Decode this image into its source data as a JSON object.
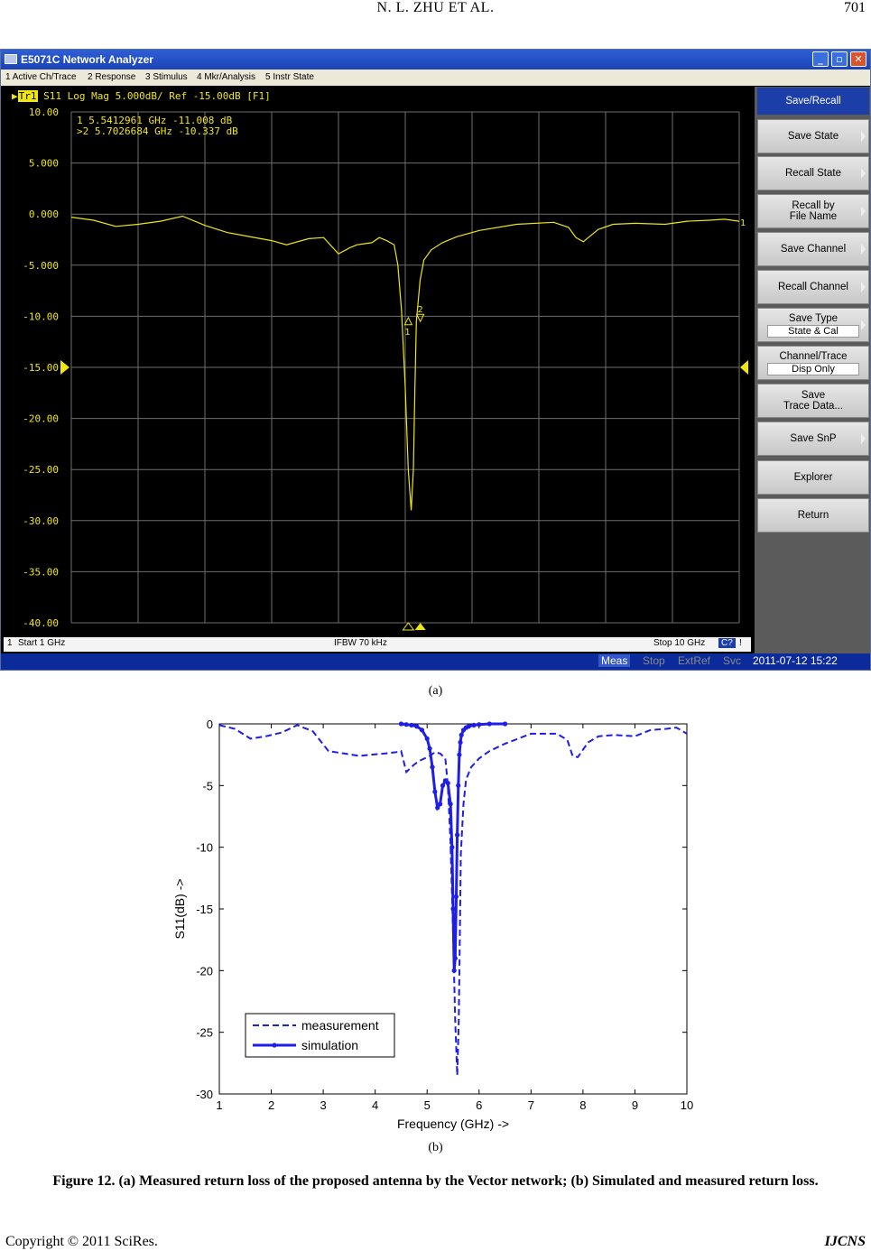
{
  "header": {
    "title": "N. L. ZHU    ET    AL.",
    "page_number": "701"
  },
  "analyzer": {
    "window_title": "E5071C Network Analyzer",
    "window_buttons": [
      "_",
      "▫",
      "✕"
    ],
    "menu": [
      "1 Active Ch/Trace",
      "2 Response",
      "3 Stimulus",
      "4 Mkr/Analysis",
      "5 Instr State"
    ],
    "trace_tag": "Tr1",
    "trace_info": "S11 Log Mag 5.000dB/ Ref -15.00dB [F1]",
    "markers": [
      {
        "label": " 1",
        "freq": "5.5412961 GHz",
        "value": "-11.008 dB"
      },
      {
        "label": ">2",
        "freq": "5.7026684 GHz",
        "value": "-10.337 dB"
      }
    ],
    "y_ticks": [
      "10.00",
      "5.000",
      "0.000",
      "-5.000",
      "-10.00",
      "-15.00",
      "-20.00",
      "-25.00",
      "-30.00",
      "-35.00",
      "-40.00"
    ],
    "ref_level_index": 5,
    "status": {
      "channel": "1",
      "start": "Start 1 GHz",
      "ifbw": "IFBW 70 kHz",
      "stop": "Stop 10 GHz",
      "cal": "C?",
      "excl": "!"
    },
    "bottom": {
      "meas": "Meas",
      "stop": "Stop",
      "extref": "ExtRef",
      "svc": "Svc",
      "datetime": "2011-07-12 15:22"
    },
    "softkeys": [
      {
        "label": "Save/Recall",
        "head": true
      },
      {
        "label": "Save State"
      },
      {
        "label": "Recall State"
      },
      {
        "label": "Recall by",
        "label2": "File Name"
      },
      {
        "label": "Save Channel"
      },
      {
        "label": "Recall Channel"
      },
      {
        "label": "Save Type",
        "sub": "State & Cal"
      },
      {
        "label": "Channel/Trace",
        "sub": "Disp Only"
      },
      {
        "label": "Save",
        "label2": "Trace Data..."
      },
      {
        "label": "Save SnP"
      },
      {
        "label": "Explorer"
      },
      {
        "label": "Return"
      }
    ],
    "marker_flags": [
      "1",
      "2"
    ],
    "right_end_label": "1",
    "colors": {
      "trace": "#f0e60f",
      "grid": "#6e6e6e",
      "background": "#000000",
      "text": "#f0e60f"
    }
  },
  "caption_a": "(a)",
  "caption_b": "(b)",
  "figure_caption": "Figure 12. (a) Measured return loss of the proposed antenna by the Vector network; (b) Simulated and measured return loss.",
  "footer": {
    "left": "Copyright © 2011 SciRes.",
    "right": "IJCNS"
  },
  "chart_data": [
    {
      "type": "line",
      "panel": "a",
      "xlabel": "",
      "ylabel": "",
      "xlim": [
        1,
        10
      ],
      "ylim": [
        -40,
        10
      ],
      "series": [
        {
          "x": [
            1.0,
            1.3,
            1.6,
            1.9,
            2.2,
            2.5,
            2.8,
            3.1,
            3.4,
            3.7,
            3.9,
            4.2,
            4.4,
            4.6,
            4.75,
            4.85,
            4.95,
            5.05,
            5.15,
            5.25,
            5.35,
            5.4,
            5.45,
            5.5,
            5.54,
            5.58,
            5.61,
            5.63,
            5.65,
            5.7,
            5.75,
            5.85,
            6.0,
            6.2,
            6.5,
            7.0,
            7.5,
            7.7,
            7.8,
            7.9,
            8.1,
            8.3,
            8.6,
            9.0,
            9.3,
            9.6,
            9.8,
            10.0
          ],
          "y": [
            -0.3,
            -0.6,
            -1.2,
            -1.0,
            -0.7,
            -0.2,
            -1.1,
            -1.8,
            -2.2,
            -2.6,
            -3.0,
            -2.4,
            -2.3,
            -3.9,
            -3.3,
            -3.0,
            -2.9,
            -2.8,
            -2.3,
            -2.6,
            -3.0,
            -5.0,
            -9.5,
            -17.0,
            -25.0,
            -29.0,
            -25.0,
            -17.0,
            -10.5,
            -6.5,
            -4.5,
            -3.5,
            -2.8,
            -2.2,
            -1.6,
            -1.0,
            -0.8,
            -1.3,
            -2.3,
            -2.7,
            -1.5,
            -1.0,
            -0.9,
            -1.0,
            -0.7,
            -0.6,
            -0.5,
            -0.7
          ]
        }
      ]
    },
    {
      "type": "line",
      "panel": "b",
      "title": "",
      "xlabel": "Frequency (GHz) ->",
      "ylabel": "S11(dB) ->",
      "xlim": [
        1,
        10
      ],
      "ylim": [
        -30,
        0
      ],
      "x_ticks": [
        "1",
        "2",
        "3",
        "4",
        "5",
        "6",
        "7",
        "8",
        "9",
        "10"
      ],
      "y_ticks": [
        "0",
        "-5",
        "-10",
        "-15",
        "-20",
        "-25",
        "-30"
      ],
      "legend_position": "bottom-left",
      "series": [
        {
          "name": "measurement",
          "style": "dashed",
          "x": [
            1.0,
            1.3,
            1.6,
            1.9,
            2.2,
            2.5,
            2.8,
            3.1,
            3.4,
            3.7,
            3.9,
            4.2,
            4.4,
            4.5,
            4.6,
            4.75,
            4.85,
            4.95,
            5.05,
            5.15,
            5.25,
            5.35,
            5.4,
            5.45,
            5.5,
            5.54,
            5.58,
            5.61,
            5.63,
            5.65,
            5.7,
            5.75,
            5.85,
            6.0,
            6.2,
            6.5,
            7.0,
            7.5,
            7.7,
            7.8,
            7.9,
            8.1,
            8.3,
            8.6,
            9.0,
            9.3,
            9.6,
            9.8,
            10.0
          ],
          "y": [
            -0.1,
            -0.4,
            -1.2,
            -1.0,
            -0.7,
            -0.1,
            -0.6,
            -2.2,
            -2.4,
            -2.6,
            -2.5,
            -2.4,
            -2.3,
            -2.2,
            -3.9,
            -3.3,
            -3.0,
            -2.8,
            -2.6,
            -2.3,
            -2.4,
            -2.8,
            -5.0,
            -9.5,
            -17.0,
            -24.0,
            -28.5,
            -24.0,
            -17.0,
            -10.5,
            -6.5,
            -4.5,
            -3.5,
            -2.8,
            -2.2,
            -1.6,
            -0.8,
            -0.8,
            -1.3,
            -2.6,
            -2.7,
            -1.5,
            -1.0,
            -0.9,
            -1.0,
            -0.5,
            -0.4,
            -0.3,
            -0.8
          ]
        },
        {
          "name": "simulation",
          "style": "solid-dots",
          "x": [
            4.5,
            4.6,
            4.7,
            4.8,
            4.9,
            5.0,
            5.05,
            5.1,
            5.15,
            5.2,
            5.25,
            5.3,
            5.35,
            5.4,
            5.45,
            5.48,
            5.5,
            5.52,
            5.54,
            5.56,
            5.58,
            5.6,
            5.62,
            5.64,
            5.66,
            5.7,
            5.75,
            5.8,
            5.9,
            6.0,
            6.2,
            6.5
          ],
          "y": [
            0.0,
            -0.05,
            -0.1,
            -0.2,
            -0.5,
            -1.2,
            -2.0,
            -3.5,
            -5.5,
            -6.8,
            -6.5,
            -5.0,
            -4.6,
            -4.8,
            -6.5,
            -10.0,
            -15.0,
            -20.0,
            -19.0,
            -14.0,
            -9.0,
            -5.0,
            -2.5,
            -1.5,
            -0.9,
            -0.5,
            -0.3,
            -0.2,
            -0.1,
            -0.05,
            0.0,
            0.0
          ]
        }
      ]
    }
  ]
}
